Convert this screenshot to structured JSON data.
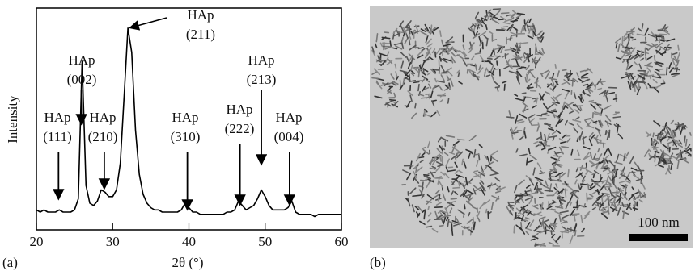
{
  "chart_data": {
    "type": "line",
    "panel_label": "(a)",
    "xlabel": "2θ (°)",
    "ylabel": "Intensity",
    "xlim": [
      20,
      60
    ],
    "xticks": [
      20,
      30,
      40,
      50,
      60
    ],
    "ylim": [
      0,
      100
    ],
    "color": "#000000",
    "x": [
      20,
      20.5,
      21,
      21.5,
      22,
      22.5,
      23,
      23.5,
      24,
      24.5,
      25,
      25.5,
      26,
      26.5,
      27,
      27.5,
      28,
      28.5,
      29,
      29.5,
      30,
      30.5,
      31,
      31.5,
      32,
      32.5,
      33,
      33.5,
      34,
      34.5,
      35,
      35.5,
      36,
      36.5,
      37,
      37.5,
      38,
      38.5,
      39,
      39.5,
      40,
      40.5,
      41,
      41.5,
      42,
      42.5,
      43,
      43.5,
      44,
      44.5,
      45,
      45.5,
      46,
      46.5,
      47,
      47.5,
      48,
      48.5,
      49,
      49.5,
      50,
      50.5,
      51,
      51.5,
      52,
      52.5,
      53,
      53.5,
      54,
      54.5,
      55,
      55.5,
      56,
      56.5,
      57,
      57.5,
      58,
      58.5,
      59,
      59.5,
      60
    ],
    "values": [
      9,
      8,
      9,
      8,
      8,
      8,
      9,
      8,
      8,
      8,
      9,
      14,
      76,
      20,
      12,
      11,
      13,
      18,
      17,
      15,
      15,
      18,
      30,
      60,
      91,
      80,
      45,
      25,
      16,
      12,
      10,
      9,
      9,
      8,
      8,
      8,
      8,
      8,
      9,
      12,
      10,
      8,
      8,
      7,
      7,
      7,
      7,
      7,
      7,
      7,
      8,
      8,
      9,
      13,
      11,
      9,
      10,
      11,
      14,
      18,
      15,
      11,
      9,
      9,
      9,
      9,
      10,
      13,
      8,
      7,
      7,
      7,
      7,
      6,
      7,
      7,
      7,
      7,
      7,
      7,
      7
    ],
    "annotations": [
      {
        "lines": [
          "HAp",
          "(111)"
        ],
        "x": 22.9
      },
      {
        "lines": [
          "HAp",
          "(002)"
        ],
        "x": 25.9
      },
      {
        "lines": [
          "HAp",
          "(210)"
        ],
        "x": 28.9
      },
      {
        "lines": [
          "HAp",
          "(211)"
        ],
        "x": 31.8
      },
      {
        "lines": [
          "HAp",
          "(310)"
        ],
        "x": 39.8
      },
      {
        "lines": [
          "HAp",
          "(222)"
        ],
        "x": 46.7
      },
      {
        "lines": [
          "HAp",
          "(213)"
        ],
        "x": 49.5
      },
      {
        "lines": [
          "HAp",
          "(004)"
        ],
        "x": 53.2
      }
    ]
  },
  "image_panel": {
    "panel_label": "(b)",
    "scale_bar": "100 nm"
  }
}
